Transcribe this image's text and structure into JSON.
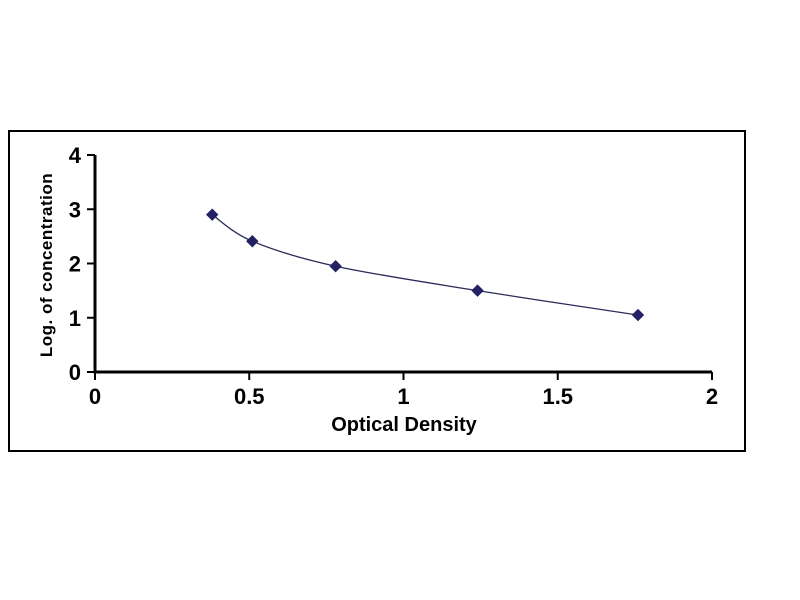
{
  "chart_data": {
    "type": "line",
    "title": "",
    "xlabel": "Optical Density",
    "ylabel": "Log. of concentration",
    "x": [
      0.38,
      0.51,
      0.78,
      1.24,
      1.76
    ],
    "y": [
      2.9,
      2.41,
      1.95,
      1.5,
      1.05
    ],
    "xlim": [
      0,
      2
    ],
    "ylim": [
      0,
      4
    ],
    "x_ticks": [
      0,
      0.5,
      1,
      1.5,
      2
    ],
    "x_tick_labels": [
      "0",
      "0.5",
      "1",
      "1.5",
      "2"
    ],
    "y_ticks": [
      0,
      1,
      2,
      3,
      4
    ],
    "y_tick_labels": [
      "0",
      "1",
      "2",
      "3",
      "4"
    ],
    "grid": false,
    "legend_position": "none",
    "marker": "diamond",
    "marker_color": "#232063",
    "line_color": "#2b2a5a",
    "axis_color": "#000000",
    "tick_label_color": "#000000"
  }
}
